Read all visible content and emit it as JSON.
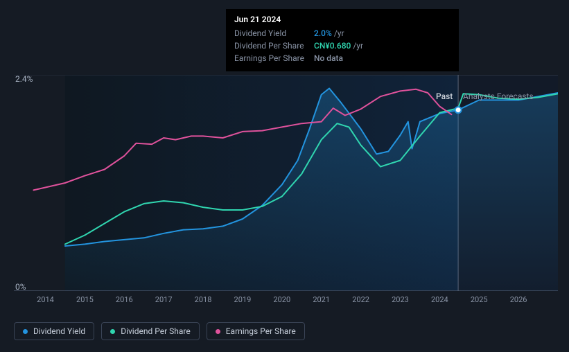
{
  "chart": {
    "type": "line",
    "background_color": "#151b24",
    "plot_background_gradient": [
      "#0f1821",
      "#10233a"
    ],
    "forecast_background": "#1a2438",
    "grid_color": "#2a3240",
    "axis_line_color": "#3a4456",
    "xlim": [
      2013.2,
      2027.0
    ],
    "ylim": [
      0,
      2.4
    ],
    "y_ticks": [
      {
        "value": 2.4,
        "label": "2.4%"
      },
      {
        "value": 0,
        "label": "0%"
      }
    ],
    "x_ticks": [
      "2014",
      "2015",
      "2016",
      "2017",
      "2018",
      "2019",
      "2020",
      "2021",
      "2022",
      "2023",
      "2024",
      "2025",
      "2026"
    ],
    "past_boundary": 2024.47,
    "region_labels": {
      "past": "Past",
      "forecast": "Analysts Forecasts"
    },
    "cursor_marker": {
      "year": 2024.47,
      "value": 2.01,
      "color": "#2394df"
    },
    "series": [
      {
        "id": "dividend_yield",
        "label": "Dividend Yield",
        "color": "#2394df",
        "line_width": 2,
        "fill_opacity": 0.35,
        "fill_gradient": [
          "rgba(35,148,223,0.28)",
          "rgba(35,148,223,0.03)"
        ],
        "points": [
          [
            2014.5,
            0.5
          ],
          [
            2015,
            0.52
          ],
          [
            2015.5,
            0.55
          ],
          [
            2016,
            0.57
          ],
          [
            2016.5,
            0.59
          ],
          [
            2017,
            0.64
          ],
          [
            2017.5,
            0.68
          ],
          [
            2018,
            0.69
          ],
          [
            2018.5,
            0.72
          ],
          [
            2019,
            0.8
          ],
          [
            2019.5,
            0.95
          ],
          [
            2020,
            1.18
          ],
          [
            2020.4,
            1.45
          ],
          [
            2020.7,
            1.8
          ],
          [
            2021,
            2.18
          ],
          [
            2021.2,
            2.25
          ],
          [
            2021.5,
            2.09
          ],
          [
            2022,
            1.8
          ],
          [
            2022.4,
            1.52
          ],
          [
            2022.7,
            1.55
          ],
          [
            2023,
            1.73
          ],
          [
            2023.2,
            1.88
          ],
          [
            2023.3,
            1.58
          ],
          [
            2023.5,
            1.88
          ],
          [
            2024,
            1.97
          ],
          [
            2024.47,
            2.01
          ],
          [
            2025,
            2.12
          ],
          [
            2025.5,
            2.12
          ],
          [
            2026,
            2.12
          ],
          [
            2026.5,
            2.16
          ],
          [
            2027,
            2.2
          ]
        ]
      },
      {
        "id": "dividend_per_share",
        "label": "Dividend Per Share",
        "color": "#30d6b0",
        "line_width": 2,
        "points": [
          [
            2014.5,
            0.52
          ],
          [
            2015,
            0.62
          ],
          [
            2015.5,
            0.75
          ],
          [
            2016,
            0.88
          ],
          [
            2016.5,
            0.97
          ],
          [
            2017,
            1.0
          ],
          [
            2017.5,
            0.98
          ],
          [
            2018,
            0.93
          ],
          [
            2018.5,
            0.9
          ],
          [
            2019,
            0.9
          ],
          [
            2019.5,
            0.94
          ],
          [
            2020,
            1.05
          ],
          [
            2020.5,
            1.3
          ],
          [
            2021,
            1.68
          ],
          [
            2021.4,
            1.86
          ],
          [
            2021.7,
            1.82
          ],
          [
            2022,
            1.62
          ],
          [
            2022.5,
            1.38
          ],
          [
            2023,
            1.45
          ],
          [
            2023.5,
            1.72
          ],
          [
            2024,
            1.98
          ],
          [
            2024.47,
            2.03
          ],
          [
            2024.6,
            2.19
          ],
          [
            2025,
            2.18
          ],
          [
            2025.5,
            2.14
          ],
          [
            2026,
            2.13
          ],
          [
            2026.5,
            2.15
          ],
          [
            2027,
            2.19
          ]
        ]
      },
      {
        "id": "earnings_per_share",
        "label": "Earnings Per Share",
        "color": "#e0529c",
        "line_width": 2,
        "points": [
          [
            2013.7,
            1.12
          ],
          [
            2014,
            1.15
          ],
          [
            2014.5,
            1.2
          ],
          [
            2015,
            1.28
          ],
          [
            2015.5,
            1.35
          ],
          [
            2016,
            1.5
          ],
          [
            2016.3,
            1.64
          ],
          [
            2016.7,
            1.63
          ],
          [
            2017,
            1.7
          ],
          [
            2017.3,
            1.68
          ],
          [
            2017.7,
            1.72
          ],
          [
            2018,
            1.72
          ],
          [
            2018.5,
            1.7
          ],
          [
            2019,
            1.77
          ],
          [
            2019.5,
            1.78
          ],
          [
            2020,
            1.82
          ],
          [
            2020.5,
            1.86
          ],
          [
            2021,
            1.88
          ],
          [
            2021.3,
            2.03
          ],
          [
            2021.6,
            1.95
          ],
          [
            2022,
            2.02
          ],
          [
            2022.5,
            2.16
          ],
          [
            2023,
            2.22
          ],
          [
            2023.4,
            2.24
          ],
          [
            2023.7,
            2.2
          ],
          [
            2024,
            2.05
          ],
          [
            2024.3,
            1.96
          ]
        ]
      }
    ]
  },
  "tooltip": {
    "date": "Jun 21 2024",
    "rows": [
      {
        "label": "Dividend Yield",
        "value": "2.0%",
        "suffix": "/yr",
        "value_color": "#2394df"
      },
      {
        "label": "Dividend Per Share",
        "value": "CN¥0.680",
        "suffix": "/yr",
        "value_color": "#30d6b0"
      },
      {
        "label": "Earnings Per Share",
        "value": "No data",
        "suffix": "",
        "value_color": "#8a94a6"
      }
    ]
  },
  "legend": {
    "items": [
      {
        "label": "Dividend Yield",
        "color": "#2394df"
      },
      {
        "label": "Dividend Per Share",
        "color": "#30d6b0"
      },
      {
        "label": "Earnings Per Share",
        "color": "#e0529c"
      }
    ]
  }
}
